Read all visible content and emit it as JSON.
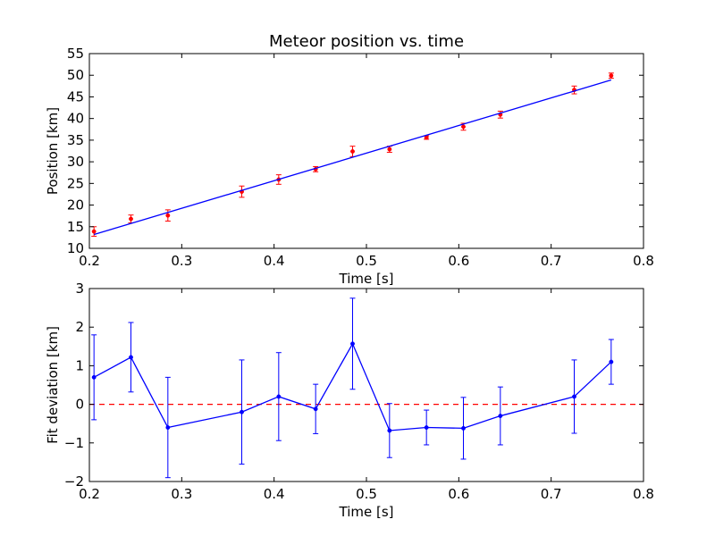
{
  "chart_data": [
    {
      "type": "scatter",
      "title": "Meteor position vs. time",
      "xlabel": "Time [s]",
      "ylabel": "Position [km]",
      "xlim": [
        0.2,
        0.8
      ],
      "ylim": [
        10,
        55
      ],
      "xticks": [
        0.2,
        0.3,
        0.4,
        0.5,
        0.6,
        0.7,
        0.8
      ],
      "xtick_labels": [
        "0.2",
        "0.3",
        "0.4",
        "0.5",
        "0.6",
        "0.7",
        "0.8"
      ],
      "yticks": [
        10,
        15,
        20,
        25,
        30,
        35,
        40,
        45,
        50,
        55
      ],
      "ytick_labels": [
        "10",
        "15",
        "20",
        "25",
        "30",
        "35",
        "40",
        "45",
        "50",
        "55"
      ],
      "grid": false,
      "series": [
        {
          "style": "points-with-error-bars",
          "color": "#ff0000",
          "x": [
            0.205,
            0.245,
            0.285,
            0.365,
            0.405,
            0.445,
            0.485,
            0.525,
            0.565,
            0.605,
            0.645,
            0.725,
            0.765
          ],
          "y": [
            13.9,
            16.8,
            17.6,
            23.1,
            25.9,
            28.3,
            32.4,
            32.9,
            35.6,
            38.1,
            40.9,
            46.6,
            49.9
          ],
          "err": [
            1.1,
            0.9,
            1.3,
            1.3,
            1.1,
            0.6,
            1.2,
            0.7,
            0.4,
            0.8,
            0.8,
            0.9,
            0.6
          ]
        },
        {
          "style": "line",
          "color": "#0000ff",
          "x": [
            0.205,
            0.765
          ],
          "y": [
            13.2,
            48.9
          ]
        }
      ]
    },
    {
      "type": "line",
      "xlabel": "Time [s]",
      "ylabel": "Fit deviation [km]",
      "xlim": [
        0.2,
        0.8
      ],
      "ylim": [
        -2,
        3
      ],
      "xticks": [
        0.2,
        0.3,
        0.4,
        0.5,
        0.6,
        0.7,
        0.8
      ],
      "xtick_labels": [
        "0.2",
        "0.3",
        "0.4",
        "0.5",
        "0.6",
        "0.7",
        "0.8"
      ],
      "yticks": [
        -2,
        -1,
        0,
        1,
        2,
        3
      ],
      "ytick_labels": [
        "−2",
        "−1",
        "0",
        "1",
        "2",
        "3"
      ],
      "grid": false,
      "series": [
        {
          "style": "line-points-with-error-bars",
          "color": "#0000ff",
          "x": [
            0.205,
            0.245,
            0.285,
            0.365,
            0.405,
            0.445,
            0.485,
            0.525,
            0.565,
            0.605,
            0.645,
            0.725,
            0.765
          ],
          "y": [
            0.7,
            1.22,
            -0.6,
            -0.2,
            0.2,
            -0.12,
            1.57,
            -0.68,
            -0.6,
            -0.62,
            -0.3,
            0.2,
            1.1
          ],
          "err": [
            1.1,
            0.9,
            1.3,
            1.35,
            1.14,
            0.64,
            1.18,
            0.7,
            0.45,
            0.8,
            0.75,
            0.95,
            0.58
          ]
        }
      ],
      "reference_line": {
        "y": 0,
        "color": "#ff0000",
        "style": "dashed"
      }
    }
  ]
}
